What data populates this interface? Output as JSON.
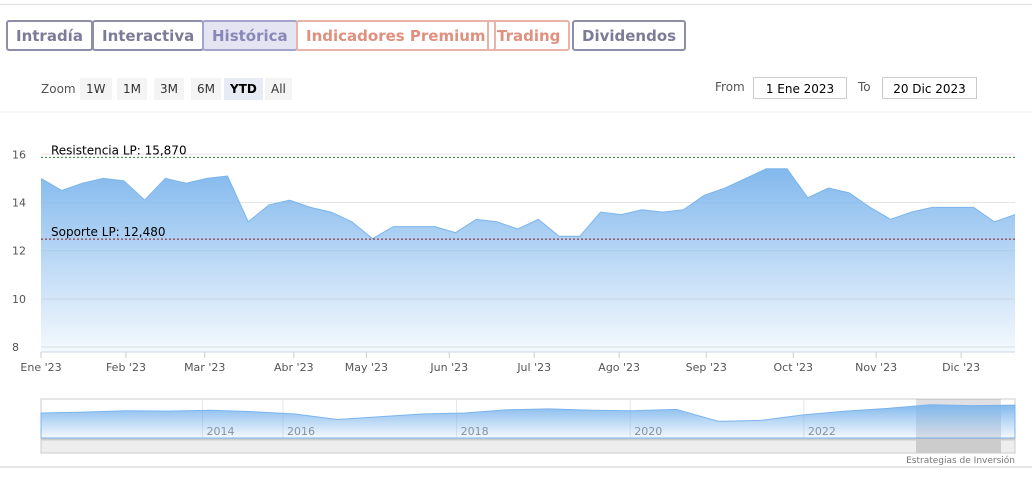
{
  "tabs": [
    "Intradía",
    "Interactiva",
    "Histórica",
    "Indicadores Premium",
    "Trading",
    "Dividendos"
  ],
  "zoom": {
    "label": "Zoom",
    "buttons": [
      "1W",
      "1M",
      "3M",
      "6M",
      "YTD",
      "All"
    ]
  },
  "range": {
    "from_label": "From",
    "from": "1 Ene 2023",
    "to_label": "To",
    "to": "20 Dic 2023"
  },
  "chart_data": {
    "type": "area",
    "color": "#7cb5ec",
    "values": [
      15.0,
      14.5,
      14.8,
      15.0,
      14.9,
      14.1,
      15.0,
      14.8,
      15.0,
      15.1,
      13.2,
      13.9,
      14.1,
      13.8,
      13.6,
      13.2,
      12.5,
      13.0,
      13.0,
      13.0,
      12.75,
      13.3,
      13.2,
      12.9,
      13.3,
      12.6,
      12.6,
      13.6,
      13.5,
      13.7,
      13.6,
      13.7,
      14.3,
      14.6,
      15.0,
      15.4,
      15.4,
      14.2,
      14.6,
      14.4,
      13.8,
      13.3,
      13.6,
      13.8,
      13.8,
      13.8,
      13.2,
      13.5
    ],
    "xlim": [
      0,
      47
    ],
    "xticks": [
      {
        "value": 0,
        "label": "Ene '23"
      },
      {
        "value": 4.1,
        "label": "Feb '23"
      },
      {
        "value": 7.9,
        "label": "Mar '23"
      },
      {
        "value": 12.2,
        "label": "Abr '23"
      },
      {
        "value": 15.7,
        "label": "May '23"
      },
      {
        "value": 19.7,
        "label": "Jun '23"
      },
      {
        "value": 23.8,
        "label": "Jul '23"
      },
      {
        "value": 27.9,
        "label": "Ago '23"
      },
      {
        "value": 32.1,
        "label": "Sep '23"
      },
      {
        "value": 36.3,
        "label": "Oct '23"
      },
      {
        "value": 40.3,
        "label": "Nov '23"
      },
      {
        "value": 44.4,
        "label": "Dic '23"
      }
    ],
    "ylim": [
      7.8,
      16.8
    ],
    "yticks": [
      8,
      10,
      12,
      14,
      16
    ],
    "grid": true,
    "annotations": [
      {
        "label": "Resistencia LP: 15,870",
        "value": 15.87,
        "color": "#2e7d32"
      },
      {
        "label": "Soporte LP: 12,480",
        "value": 12.48,
        "color": "#8b1a1a"
      }
    ]
  },
  "navigator": {
    "values": [
      13.4,
      13.6,
      13.9,
      13.8,
      14.0,
      13.7,
      13.2,
      12.0,
      12.6,
      13.2,
      13.4,
      14.1,
      14.3,
      14.0,
      13.9,
      14.2,
      11.6,
      11.8,
      13.0,
      13.8,
      14.4,
      15.2,
      15.0,
      15.1
    ],
    "ylim": [
      8,
      16
    ],
    "xticks": [
      {
        "value": 4.9,
        "label": "2014"
      },
      {
        "value": 6.8,
        "label": "2016"
      },
      {
        "value": 10.9,
        "label": "2018"
      },
      {
        "value": 15.0,
        "label": "2020"
      },
      {
        "value": 19.1,
        "label": "2022"
      }
    ],
    "xlim": [
      0,
      23
    ]
  },
  "credits": "Estrategias de Inversión"
}
